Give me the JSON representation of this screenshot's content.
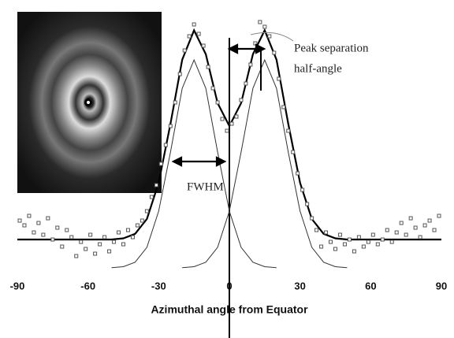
{
  "chart_data": {
    "type": "scatter",
    "xlabel": "Azimuthal angle from Equator",
    "annotations": [
      "Peak separation",
      "half-angle",
      "FWHM"
    ],
    "xlim": [
      -90,
      90
    ],
    "ylim": [
      0,
      110
    ],
    "xticks": [
      -90,
      -60,
      -30,
      0,
      30,
      60,
      90
    ],
    "points": {
      "color": "#555555",
      "x": [
        -89,
        -87,
        -85,
        -83,
        -81,
        -79,
        -77,
        -75,
        -73,
        -71,
        -69,
        -67,
        -65,
        -63,
        -61,
        -59,
        -57,
        -55,
        -53,
        -51,
        -49,
        -47,
        -45,
        -43,
        -41,
        -39,
        -37,
        -35,
        -33,
        -31,
        -29,
        -27,
        -25,
        -23,
        -21,
        -19,
        -17,
        -15,
        -13,
        -11,
        -9,
        -7,
        -5,
        -3,
        -1,
        1,
        3,
        5,
        7,
        9,
        11,
        13,
        15,
        17,
        19,
        21,
        23,
        25,
        27,
        29,
        31,
        33,
        35,
        37,
        39,
        41,
        43,
        45,
        47,
        49,
        51,
        53,
        55,
        57,
        59,
        61,
        63,
        65,
        67,
        69,
        71,
        73,
        75,
        77,
        79,
        81,
        83,
        85,
        87,
        89
      ],
      "y": [
        20,
        18,
        22,
        15,
        19,
        14,
        21,
        12,
        17,
        9,
        16,
        13,
        5,
        11,
        8,
        14,
        6,
        10,
        13,
        7,
        11,
        15,
        10,
        16,
        13,
        18,
        20,
        24,
        30,
        35,
        44,
        52,
        60,
        70,
        82,
        92,
        98,
        103,
        99,
        94,
        85,
        76,
        70,
        63,
        58,
        61,
        64,
        71,
        78,
        86,
        95,
        104,
        102,
        98,
        91,
        80,
        68,
        58,
        49,
        40,
        33,
        27,
        21,
        16,
        9,
        15,
        11,
        8,
        14,
        10,
        12,
        7,
        13,
        9,
        11,
        14,
        10,
        12,
        16,
        11,
        15,
        19,
        14,
        21,
        17,
        13,
        18,
        20,
        16,
        22
      ]
    },
    "curves": [
      {
        "color": "#000000",
        "width": 2.2,
        "x": [
          -90,
          -80,
          -70,
          -60,
          -50,
          -45,
          -40,
          -35,
          -30,
          -25,
          -20,
          -15,
          -10,
          -5,
          0,
          5,
          10,
          15,
          20,
          25,
          30,
          35,
          40,
          45,
          50,
          60,
          70,
          80,
          90
        ],
        "y": [
          12,
          12,
          12,
          12,
          12,
          12.5,
          14.4,
          20.7,
          36,
          61,
          88.1,
          100.5,
          90.4,
          69.7,
          60,
          69.7,
          90.4,
          100.5,
          88.1,
          61,
          36,
          20.7,
          14.4,
          12.5,
          12,
          12,
          12,
          12,
          12
        ]
      },
      {
        "color": "#333333",
        "width": 1,
        "x": [
          -50,
          -45,
          -40,
          -35,
          -30,
          -25,
          -20,
          -15,
          -10,
          -5,
          0,
          5,
          10,
          15,
          20
        ],
        "y": [
          0.1,
          0.5,
          2.4,
          8.7,
          24,
          49,
          76,
          88,
          76,
          49,
          24,
          8.7,
          2.4,
          0.5,
          0.1
        ]
      },
      {
        "color": "#333333",
        "width": 1,
        "x": [
          -20,
          -15,
          -10,
          -5,
          0,
          5,
          10,
          15,
          20,
          25,
          30,
          35,
          40,
          45,
          50
        ],
        "y": [
          0.1,
          0.5,
          2.4,
          8.7,
          24,
          49,
          76,
          88,
          76,
          49,
          24,
          8.7,
          2.4,
          0.5,
          0.1
        ]
      }
    ]
  }
}
